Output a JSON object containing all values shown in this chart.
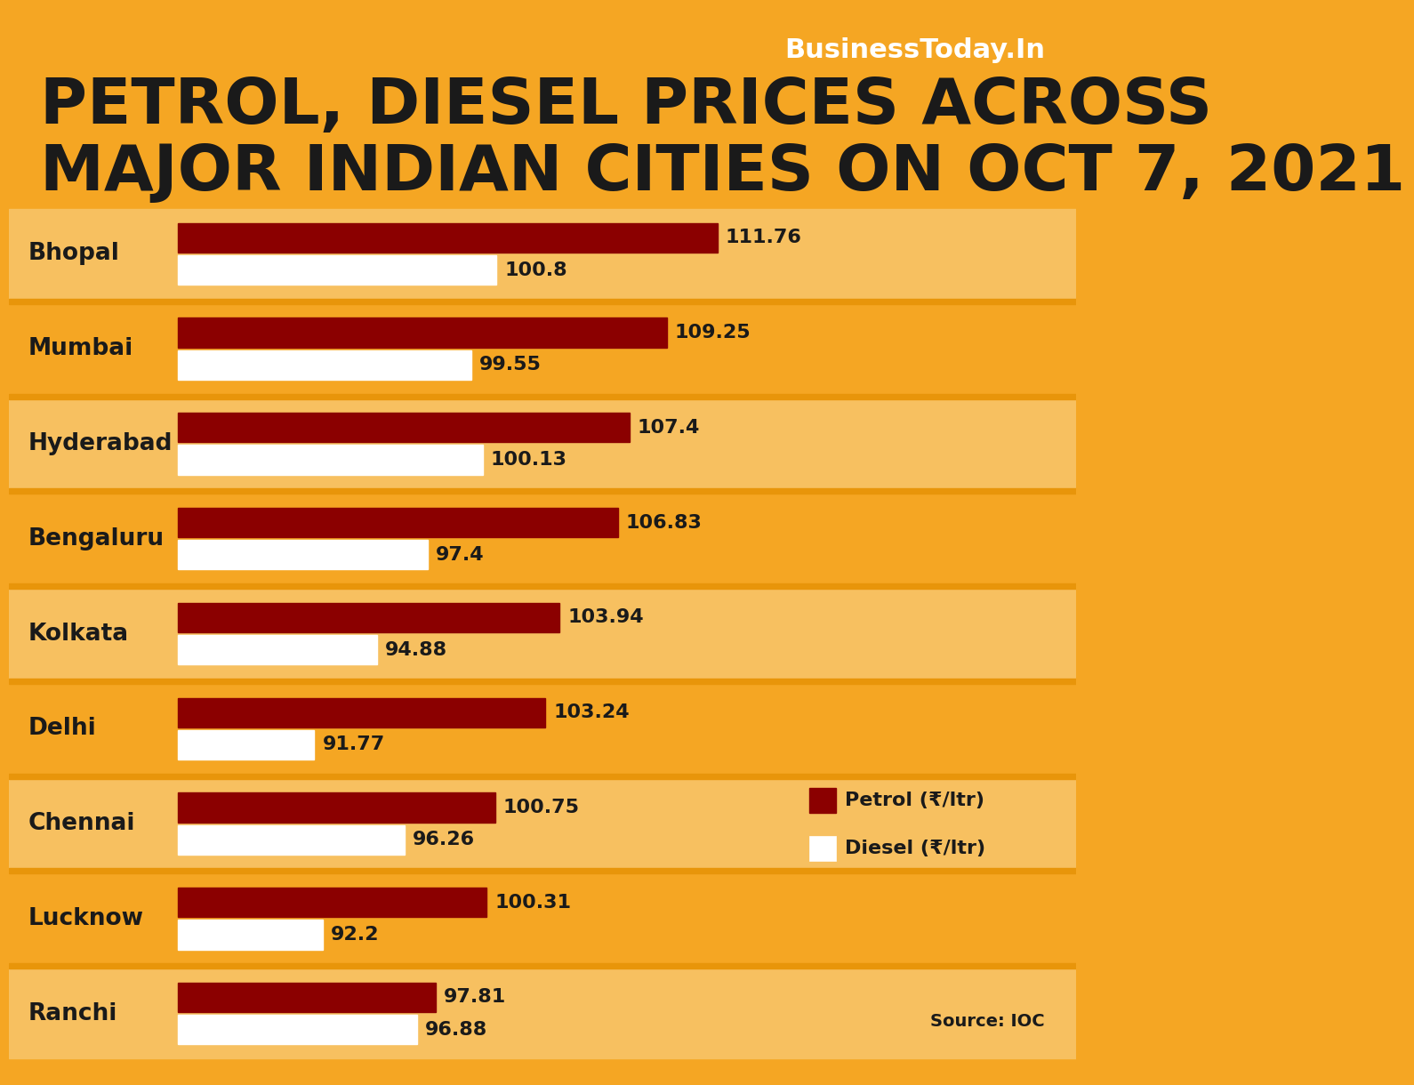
{
  "title_line1": "PETROL, DIESEL PRICES ACROSS",
  "title_line2": "MAJOR INDIAN CITIES ON OCT 7, 2021",
  "branding": "BusinessToday.In",
  "source": "Source: IOC",
  "cities": [
    "Bhopal",
    "Mumbai",
    "Hyderabad",
    "Bengaluru",
    "Kolkata",
    "Delhi",
    "Chennai",
    "Lucknow",
    "Ranchi"
  ],
  "petrol": [
    111.76,
    109.25,
    107.4,
    106.83,
    103.94,
    103.24,
    100.75,
    100.31,
    97.81
  ],
  "diesel": [
    100.8,
    99.55,
    100.13,
    97.4,
    94.88,
    91.77,
    96.26,
    92.2,
    96.88
  ],
  "bg_color": "#F5A623",
  "row_bg_light": "#F7C060",
  "row_bg_dark": "#F5A623",
  "separator_color": "#E8950A",
  "petrol_color": "#8B0000",
  "diesel_color": "#FFFFFF",
  "title_color": "#1A1A1A",
  "label_color": "#1A1A1A",
  "value_color": "#1A1A1A",
  "branding_color": "#FFFFFF",
  "bar_min": 85,
  "bar_max": 115
}
